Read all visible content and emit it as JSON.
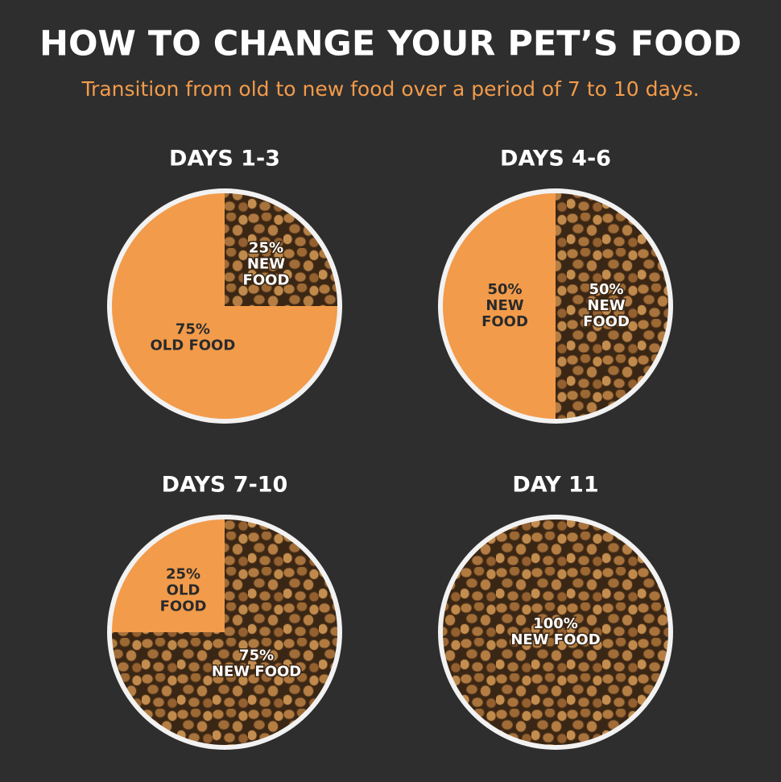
{
  "header": {
    "title": "HOW TO CHANGE YOUR PET’S FOOD",
    "subtitle": "Transition from old to new food over a period of 7 to 10 days."
  },
  "chart_data": [
    {
      "type": "pie",
      "title": "DAYS 1-3",
      "categories": [
        "NEW FOOD",
        "OLD FOOD"
      ],
      "values": [
        25,
        75
      ],
      "value_labels": [
        "25%",
        "75%"
      ],
      "colors": [
        "#a8733c",
        "#f29b4b"
      ]
    },
    {
      "type": "pie",
      "title": "DAYS 4-6",
      "categories": [
        "NEW FOOD",
        "NEW FOOD"
      ],
      "values": [
        50,
        50
      ],
      "value_labels": [
        "50%",
        "50%"
      ],
      "colors": [
        "#a8733c",
        "#f29b4b"
      ]
    },
    {
      "type": "pie",
      "title": "DAYS 7-10",
      "categories": [
        "NEW FOOD",
        "OLD FOOD"
      ],
      "values": [
        75,
        25
      ],
      "value_labels": [
        "75%",
        "25%"
      ],
      "colors": [
        "#a8733c",
        "#f29b4b"
      ]
    },
    {
      "type": "pie",
      "title": "DAY 11",
      "categories": [
        "NEW FOOD"
      ],
      "values": [
        100
      ],
      "value_labels": [
        "100%"
      ],
      "colors": [
        "#a8733c"
      ]
    }
  ]
}
